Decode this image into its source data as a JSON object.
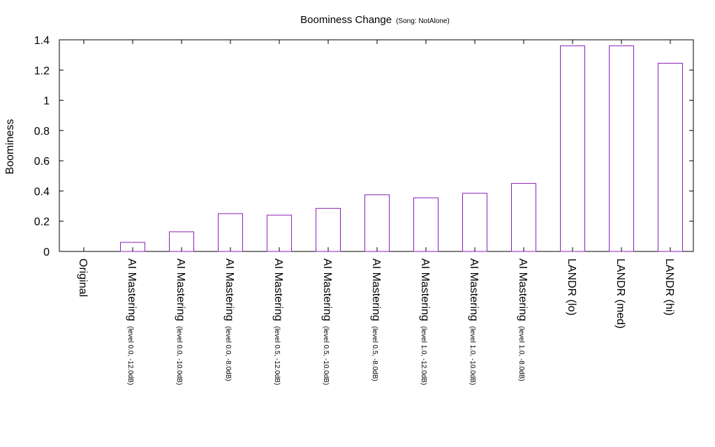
{
  "chart_data": {
    "type": "bar",
    "title": "Boominess Change",
    "subtitle": "(Song: NotAlone)",
    "xlabel": "",
    "ylabel": "Boominess",
    "ylim": [
      0,
      1.4
    ],
    "yticks": [
      "0",
      "0.2",
      "0.4",
      "0.6",
      "0.8",
      "1",
      "1.2",
      "1.4"
    ],
    "grid": false,
    "bar_color": "#8b1fb5",
    "categories": [
      {
        "main": "Original",
        "sub": ""
      },
      {
        "main": "AI Mastering",
        "sub": "(level 0.0, -12.0dB)"
      },
      {
        "main": "AI Mastering",
        "sub": "(level 0.0, -10.0dB)"
      },
      {
        "main": "AI Mastering",
        "sub": "(level 0.0, -8.0dB)"
      },
      {
        "main": "AI Mastering",
        "sub": "(level 0.5, -12.0dB)"
      },
      {
        "main": "AI Mastering",
        "sub": "(level 0.5, -10.0dB)"
      },
      {
        "main": "AI Mastering",
        "sub": "(level 0.5, -8.0dB)"
      },
      {
        "main": "AI Mastering",
        "sub": "(level 1.0, -12.0dB)"
      },
      {
        "main": "AI Mastering",
        "sub": "(level 1.0, -10.0dB)"
      },
      {
        "main": "AI Mastering",
        "sub": "(level 1.0, -8.0dB)"
      },
      {
        "main": "LANDR (lo)",
        "sub": ""
      },
      {
        "main": "LANDR (med)",
        "sub": ""
      },
      {
        "main": "LANDR (hi)",
        "sub": ""
      }
    ],
    "values": [
      0,
      0.06,
      0.13,
      0.25,
      0.24,
      0.285,
      0.375,
      0.355,
      0.385,
      0.45,
      1.36,
      1.36,
      1.245
    ]
  }
}
